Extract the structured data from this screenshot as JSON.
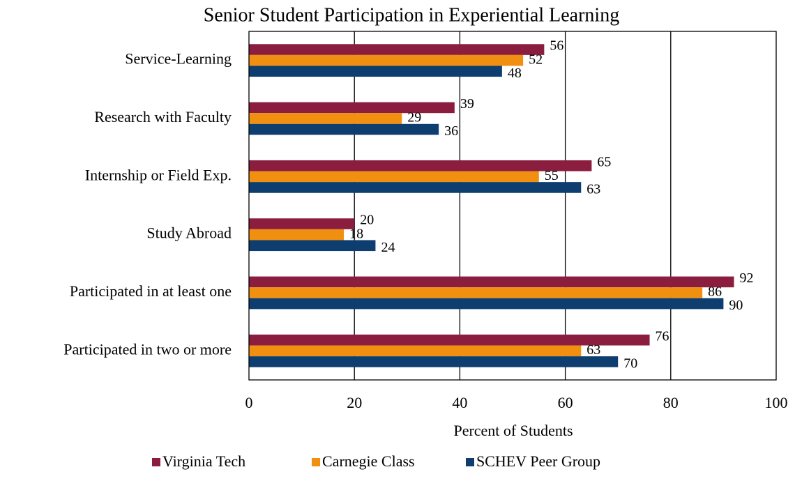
{
  "chart_data": {
    "type": "bar",
    "orientation": "horizontal",
    "title": "Senior Student Participation in Experiential Learning",
    "xlabel": "Percent of Students",
    "categories": [
      "Service-Learning",
      "Research with Faculty",
      "Internship or Field Exp.",
      "Study Abroad",
      "Participated in at least one",
      "Participated in two or more"
    ],
    "series": [
      {
        "name": "Virginia Tech",
        "color": "#8b1e3f",
        "values": [
          56,
          39,
          65,
          20,
          92,
          76
        ]
      },
      {
        "name": "Carnegie Class",
        "color": "#f08f10",
        "values": [
          52,
          29,
          55,
          18,
          86,
          63
        ]
      },
      {
        "name": "SCHEV Peer Group",
        "color": "#0d3e6f",
        "values": [
          48,
          36,
          63,
          24,
          90,
          70
        ]
      }
    ],
    "xlim": [
      0,
      100
    ],
    "xticks": [
      0,
      20,
      40,
      60,
      80,
      100
    ],
    "grid": true,
    "legend": "bottom"
  }
}
